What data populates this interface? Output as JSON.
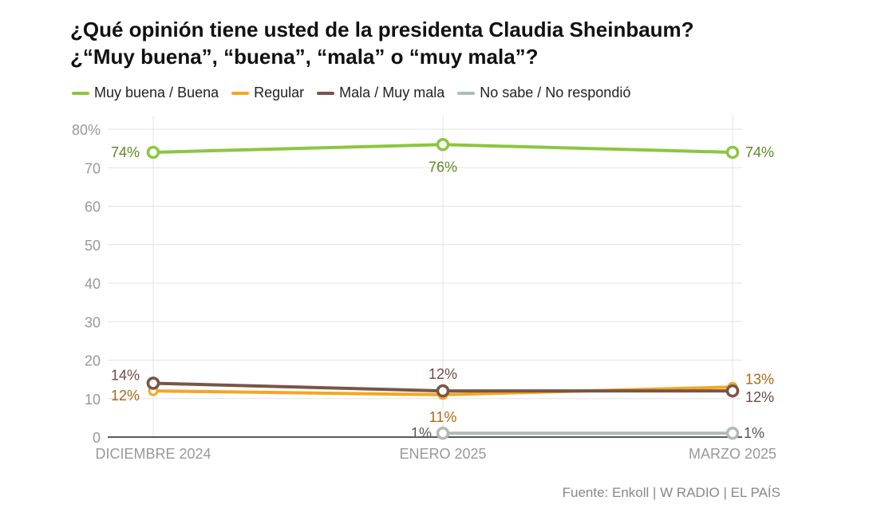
{
  "title": {
    "line1": "¿Qué opinión tiene usted de la presidenta Claudia Sheinbaum?",
    "line2": "¿“Muy buena”, “buena”, “mala” o “muy mala”?"
  },
  "source": "Fuente: Enkoll | W RADIO | EL PAÍS",
  "chart_data": {
    "type": "line",
    "categories": [
      "DICIEMBRE 2024",
      "ENERO 2025",
      "MARZO 2025"
    ],
    "ylim": [
      0,
      80
    ],
    "yticks": [
      "0",
      "10",
      "20",
      "30",
      "40",
      "50",
      "60",
      "70",
      "80%"
    ],
    "grid": true,
    "legend_position": "top-left",
    "series": [
      {
        "name": "Muy buena / Buena",
        "color": "#8cc63f",
        "label_color": "#5a8a1f",
        "values": [
          74,
          76,
          74
        ],
        "labels": [
          "74%",
          "76%",
          "74%"
        ]
      },
      {
        "name": "Regular",
        "color": "#f5a623",
        "label_color": "#a86a12",
        "values": [
          12,
          11,
          13
        ],
        "labels": [
          "12%",
          "11%",
          "13%"
        ]
      },
      {
        "name": "Mala / Muy mala",
        "color": "#795548",
        "label_color": "#6d4c41",
        "values": [
          14,
          12,
          12
        ],
        "labels": [
          "14%",
          "12%",
          "12%"
        ]
      },
      {
        "name": "No sabe / No respondió",
        "color": "#b0bbb8",
        "label_color": "#555555",
        "values": [
          null,
          1,
          1
        ],
        "labels": [
          "",
          "1%",
          "1%"
        ]
      }
    ]
  }
}
